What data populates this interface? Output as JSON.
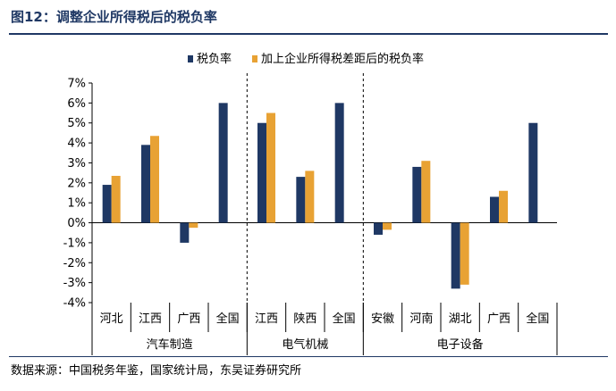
{
  "header": {
    "figure_title": "图12：调整企业所得税后的税负率"
  },
  "footer": {
    "source": "数据来源：中国税务年鉴，国家统计局，东吴证券研究所"
  },
  "colors": {
    "series1": "#1f3864",
    "series2": "#e8a234",
    "title": "#1f3864"
  },
  "chart_data": {
    "type": "bar",
    "categories": [
      "河北",
      "江西",
      "广西",
      "全国",
      "江西",
      "陕西",
      "全国",
      "安徽",
      "河南",
      "湖北",
      "广西",
      "全国"
    ],
    "groups": [
      {
        "label": "汽车制造",
        "categories": [
          "河北",
          "江西",
          "广西",
          "全国"
        ]
      },
      {
        "label": "电气机械",
        "categories": [
          "江西",
          "陕西",
          "全国"
        ]
      },
      {
        "label": "电子设备",
        "categories": [
          "安徽",
          "河南",
          "湖北",
          "广西",
          "全国"
        ]
      }
    ],
    "series": [
      {
        "name": "税负率",
        "values": [
          1.9,
          3.9,
          -1.0,
          6.0,
          5.0,
          2.3,
          6.0,
          -0.6,
          2.8,
          -3.3,
          1.3,
          5.0
        ]
      },
      {
        "name": "加上企业所得税差距后的税负率",
        "values": [
          2.35,
          4.35,
          -0.25,
          null,
          5.5,
          2.6,
          null,
          -0.35,
          3.1,
          -3.1,
          1.6,
          null
        ]
      }
    ],
    "ylim": [
      -4,
      7
    ],
    "yticks": [
      -4,
      -3,
      -2,
      -1,
      0,
      1,
      2,
      3,
      4,
      5,
      6,
      7
    ],
    "ytick_labels": [
      "-4%",
      "-3%",
      "-2%",
      "-1%",
      "0%",
      "1%",
      "2%",
      "3%",
      "4%",
      "5%",
      "6%",
      "7%"
    ],
    "legend_position": "top-center",
    "grid": false
  }
}
